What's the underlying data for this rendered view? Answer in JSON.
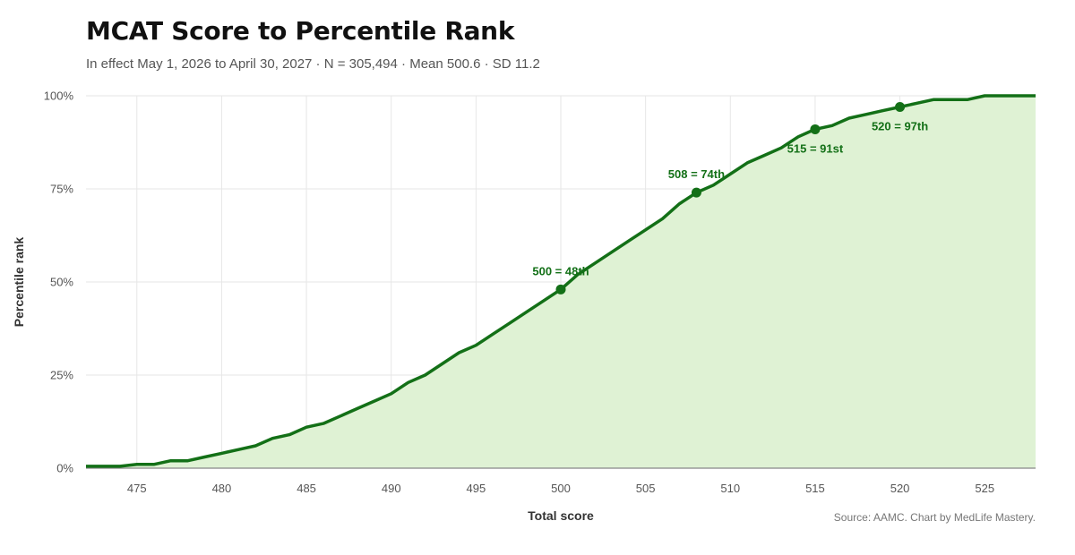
{
  "title": "MCAT Score to Percentile Rank",
  "subtitle": "In effect May 1, 2026 to April 30, 2027 · N = 305,494 · Mean 500.6 · SD 11.2",
  "source": "Source: AAMC. Chart by MedLife Mastery.",
  "colors": {
    "line": "#137017",
    "fill": "#dff2d4",
    "grid": "#e6e6e6",
    "axis": "#888888",
    "annotation": "#137017"
  },
  "chart_data": {
    "type": "area",
    "xlabel": "Total score",
    "ylabel": "Percentile rank",
    "xlim": [
      472,
      528
    ],
    "ylim": [
      0,
      100
    ],
    "x_ticks": [
      475,
      480,
      485,
      490,
      495,
      500,
      505,
      510,
      515,
      520,
      525
    ],
    "y_ticks": [
      0,
      25,
      50,
      75,
      100
    ],
    "y_tick_labels": [
      "0%",
      "25%",
      "50%",
      "75%",
      "100%"
    ],
    "grid": true,
    "series": [
      {
        "x": [
          472,
          473,
          474,
          475,
          476,
          477,
          478,
          479,
          480,
          481,
          482,
          483,
          484,
          485,
          486,
          487,
          488,
          489,
          490,
          491,
          492,
          493,
          494,
          495,
          496,
          497,
          498,
          499,
          500,
          501,
          502,
          503,
          504,
          505,
          506,
          507,
          508,
          509,
          510,
          511,
          512,
          513,
          514,
          515,
          516,
          517,
          518,
          519,
          520,
          521,
          522,
          523,
          524,
          525,
          526,
          527,
          528
        ],
        "y": [
          0.5,
          0.5,
          0.5,
          1,
          1,
          2,
          2,
          3,
          4,
          5,
          6,
          8,
          9,
          11,
          12,
          14,
          16,
          18,
          20,
          23,
          25,
          28,
          31,
          33,
          36,
          39,
          42,
          45,
          48,
          52,
          55,
          58,
          61,
          64,
          67,
          71,
          74,
          76,
          79,
          82,
          84,
          86,
          89,
          91,
          92,
          94,
          95,
          96,
          97,
          98,
          99,
          99,
          99,
          100,
          100,
          100,
          100
        ]
      }
    ],
    "annotations": [
      {
        "x": 500,
        "y": 48,
        "label": "500 = 48th",
        "position": "above"
      },
      {
        "x": 508,
        "y": 74,
        "label": "508 = 74th",
        "position": "above"
      },
      {
        "x": 515,
        "y": 91,
        "label": "515 = 91st",
        "position": "below"
      },
      {
        "x": 520,
        "y": 97,
        "label": "520 = 97th",
        "position": "below"
      }
    ]
  }
}
